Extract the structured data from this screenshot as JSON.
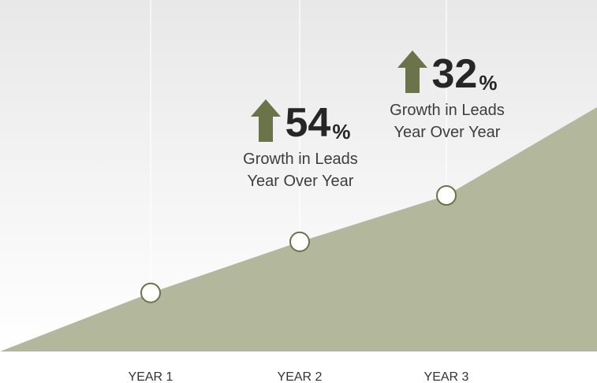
{
  "colors": {
    "area_fill": "#b3b89c",
    "arrow_fill": "#6b7348",
    "marker_stroke": "#6b7348",
    "marker_fill": "#ffffff",
    "background_top": "#e8e8e8",
    "background_bottom": "#ffffff",
    "guide_line": "#ffffff"
  },
  "callouts": [
    {
      "value": "54",
      "unit": "%",
      "icon": "arrow-up-icon",
      "line1": "Growth in Leads",
      "line2": "Year Over Year"
    },
    {
      "value": "32",
      "unit": "%",
      "icon": "arrow-up-icon",
      "line1": "Growth in Leads",
      "line2": "Year Over Year"
    }
  ],
  "chart_data": {
    "type": "area",
    "title": "",
    "xlabel": "",
    "ylabel": "",
    "grid": false,
    "legend": "none",
    "categories": [
      "YEAR 1",
      "YEAR 2",
      "YEAR 3"
    ],
    "series": [
      {
        "values": [
          100,
          154,
          203
        ]
      }
    ],
    "ylim": [
      38,
      338
    ]
  }
}
